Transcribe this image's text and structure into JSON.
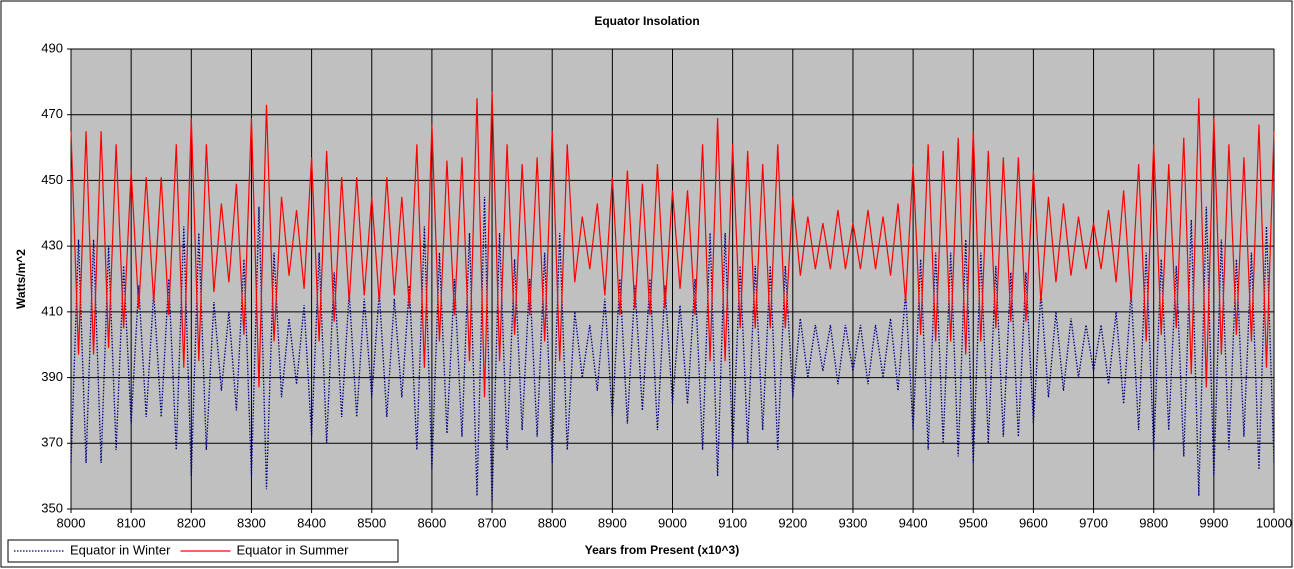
{
  "chart_data": {
    "type": "line",
    "title": "Equator Insolation",
    "x_label": "Years from Present (x10^3)",
    "y_label": "Watts/m^2",
    "x": [
      8000,
      8012.5,
      8025,
      8037.5,
      8050,
      8062.5,
      8075,
      8087.5,
      8100,
      8112.5,
      8125,
      8137.5,
      8150,
      8162.5,
      8175,
      8187.5,
      8200,
      8212.5,
      8225,
      8237.5,
      8250,
      8262.5,
      8275,
      8287.5,
      8300,
      8312.5,
      8325,
      8337.5,
      8350,
      8362.5,
      8375,
      8387.5,
      8400,
      8412.5,
      8425,
      8437.5,
      8450,
      8462.5,
      8475,
      8487.5,
      8500,
      8512.5,
      8525,
      8537.5,
      8550,
      8562.5,
      8575,
      8587.5,
      8600,
      8612.5,
      8625,
      8637.5,
      8650,
      8662.5,
      8675,
      8687.5,
      8700,
      8712.5,
      8725,
      8737.5,
      8750,
      8762.5,
      8775,
      8787.5,
      8800,
      8812.5,
      8825,
      8837.5,
      8850,
      8862.5,
      8875,
      8887.5,
      8900,
      8912.5,
      8925,
      8937.5,
      8950,
      8962.5,
      8975,
      8987.5,
      9000,
      9012.5,
      9025,
      9037.5,
      9050,
      9062.5,
      9075,
      9087.5,
      9100,
      9112.5,
      9125,
      9137.5,
      9150,
      9162.5,
      9175,
      9187.5,
      9200,
      9212.5,
      9225,
      9237.5,
      9250,
      9262.5,
      9275,
      9287.5,
      9300,
      9312.5,
      9325,
      9337.5,
      9350,
      9362.5,
      9375,
      9387.5,
      9400,
      9412.5,
      9425,
      9437.5,
      9450,
      9462.5,
      9475,
      9487.5,
      9500,
      9512.5,
      9525,
      9537.5,
      9550,
      9562.5,
      9575,
      9587.5,
      9600,
      9612.5,
      9625,
      9637.5,
      9650,
      9662.5,
      9675,
      9687.5,
      9700,
      9712.5,
      9725,
      9737.5,
      9750,
      9762.5,
      9775,
      9787.5,
      9800,
      9812.5,
      9825,
      9837.5,
      9850,
      9862.5,
      9875,
      9887.5,
      9900,
      9912.5,
      9925,
      9937.5,
      9950,
      9962.5,
      9975,
      9987.5,
      10000
    ],
    "series": [
      {
        "name": "Equator in Winter",
        "color": "#000080",
        "line_style": "dotted",
        "values": [
          364,
          432,
          364,
          432,
          364,
          430,
          368,
          424,
          376,
          418,
          378,
          416,
          378,
          420,
          368,
          436,
          360,
          434,
          368,
          413,
          386,
          410,
          380,
          426,
          360,
          442,
          356,
          428,
          384,
          408,
          388,
          412,
          372,
          428,
          370,
          422,
          378,
          416,
          378,
          414,
          384,
          416,
          378,
          414,
          384,
          418,
          368,
          436,
          362,
          428,
          373,
          420,
          372,
          434,
          354,
          445,
          352,
          434,
          368,
          426,
          374,
          420,
          372,
          428,
          364,
          434,
          368,
          410,
          390,
          406,
          386,
          414,
          378,
          420,
          376,
          418,
          380,
          420,
          374,
          418,
          382,
          412,
          382,
          420,
          368,
          434,
          360,
          434,
          368,
          424,
          370,
          424,
          374,
          424,
          368,
          424,
          384,
          408,
          390,
          406,
          392,
          406,
          388,
          406,
          392,
          406,
          388,
          406,
          390,
          408,
          386,
          416,
          374,
          426,
          368,
          428,
          370,
          428,
          366,
          432,
          364,
          428,
          370,
          424,
          372,
          422,
          372,
          422,
          376,
          416,
          384,
          410,
          386,
          408,
          390,
          406,
          392,
          406,
          388,
          410,
          382,
          416,
          374,
          428,
          368,
          426,
          374,
          424,
          366,
          438,
          354,
          442,
          360,
          432,
          368,
          426,
          372,
          428,
          362,
          436,
          364
        ]
      },
      {
        "name": "Equator in Summer",
        "color": "#ff0000",
        "line_style": "solid",
        "values": [
          465,
          397,
          465,
          397,
          465,
          399,
          461,
          405,
          453,
          411,
          451,
          413,
          451,
          409,
          461,
          393,
          469,
          395,
          461,
          416,
          443,
          419,
          449,
          403,
          469,
          387,
          473,
          401,
          445,
          421,
          441,
          417,
          457,
          401,
          459,
          407,
          451,
          413,
          451,
          415,
          445,
          413,
          451,
          415,
          445,
          411,
          461,
          393,
          467,
          401,
          456,
          409,
          457,
          395,
          475,
          384,
          477,
          395,
          461,
          403,
          455,
          409,
          457,
          401,
          465,
          395,
          461,
          419,
          439,
          423,
          443,
          415,
          451,
          409,
          453,
          411,
          449,
          409,
          455,
          411,
          447,
          417,
          447,
          409,
          461,
          395,
          469,
          395,
          461,
          405,
          459,
          405,
          455,
          405,
          461,
          405,
          445,
          421,
          439,
          423,
          437,
          423,
          441,
          423,
          437,
          423,
          441,
          423,
          439,
          421,
          443,
          413,
          455,
          403,
          461,
          401,
          459,
          401,
          463,
          397,
          465,
          401,
          459,
          405,
          457,
          407,
          457,
          407,
          453,
          413,
          445,
          419,
          443,
          421,
          439,
          423,
          437,
          423,
          441,
          419,
          447,
          413,
          455,
          401,
          461,
          403,
          455,
          405,
          463,
          391,
          475,
          387,
          469,
          397,
          461,
          403,
          457,
          401,
          467,
          393,
          465
        ]
      }
    ],
    "xlim": [
      8000,
      10000
    ],
    "ylim": [
      350,
      490
    ],
    "xticks": [
      8000,
      8100,
      8200,
      8300,
      8400,
      8500,
      8600,
      8700,
      8800,
      8900,
      9000,
      9100,
      9200,
      9300,
      9400,
      9500,
      9600,
      9700,
      9800,
      9900,
      10000
    ],
    "yticks": [
      350,
      370,
      390,
      410,
      430,
      450,
      470,
      490
    ],
    "grid": true,
    "plot_background": "#c0c0c0"
  }
}
